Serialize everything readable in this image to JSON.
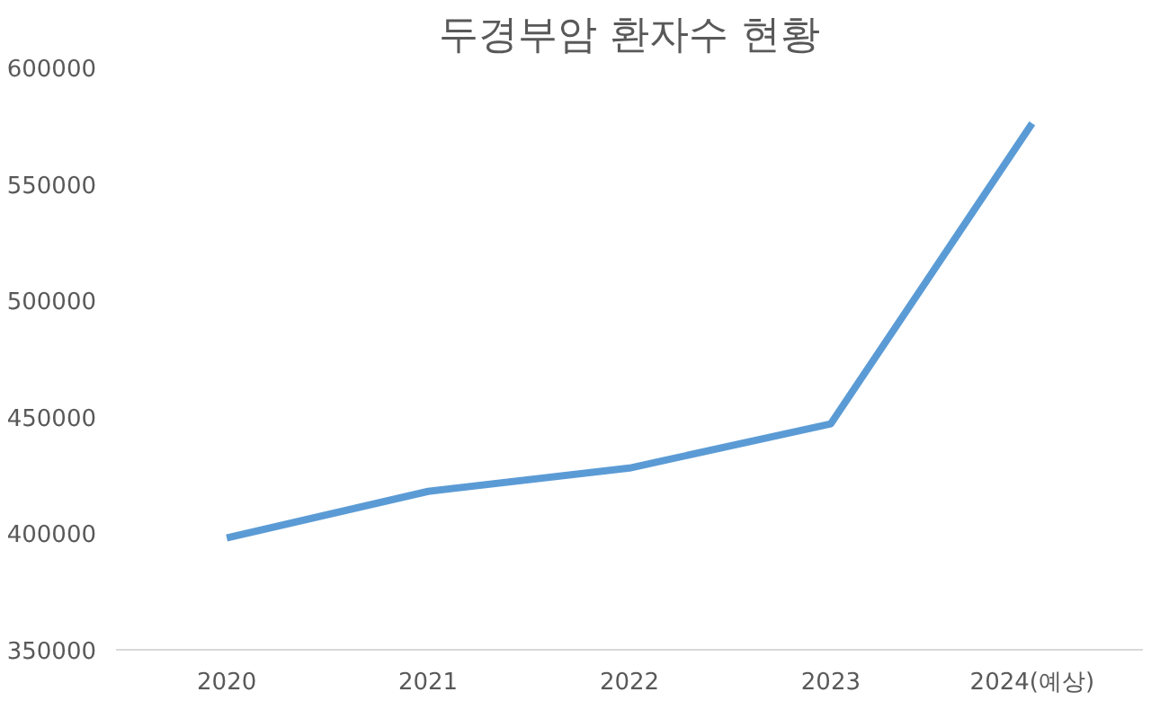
{
  "chart_data": {
    "type": "line",
    "title": "두경부암 환자수 현황",
    "categories": [
      "2020",
      "2021",
      "2022",
      "2023",
      "2024(예상)"
    ],
    "values": [
      398000,
      418000,
      428000,
      447000,
      576000
    ],
    "color": "#5b9bd5",
    "ylim": [
      350000,
      600000
    ],
    "yticks": [
      350000,
      400000,
      450000,
      500000,
      550000,
      600000
    ],
    "grid": false,
    "marker": "none",
    "line_style": "solid"
  }
}
